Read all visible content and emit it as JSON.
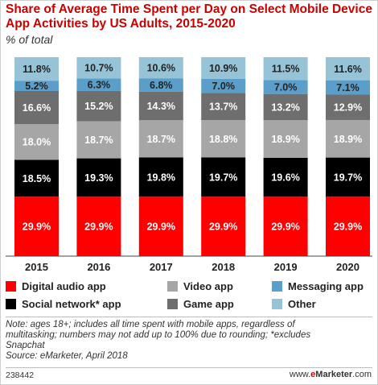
{
  "title": "Share of Average Time Spent per Day on Select Mobile Device App Activities by US Adults, 2015-2020",
  "subtitle": "% of total",
  "colors": {
    "title": "#cc0000",
    "digital_audio": "#ff0000",
    "social_network": "#000000",
    "video": "#a6a6a6",
    "game": "#6e6e6e",
    "messaging": "#5b9ec9",
    "other": "#96c3d6"
  },
  "chart_data": {
    "type": "bar",
    "stacked": true,
    "categories": [
      "2015",
      "2016",
      "2017",
      "2018",
      "2019",
      "2020"
    ],
    "series": [
      {
        "name": "Digital audio app",
        "key": "digital_audio",
        "values": [
          29.9,
          29.9,
          29.9,
          29.9,
          29.9,
          29.9
        ],
        "labels": [
          "29.9%",
          "29.9%",
          "29.9%",
          "29.9%",
          "29.9%",
          "29.9%"
        ]
      },
      {
        "name": "Social network* app",
        "key": "social_network",
        "values": [
          18.5,
          19.3,
          19.8,
          19.7,
          19.6,
          19.7
        ],
        "labels": [
          "18.5%",
          "19.3%",
          "19.8%",
          "19.7%",
          "19.6%",
          "19.7%"
        ]
      },
      {
        "name": "Video app",
        "key": "video",
        "values": [
          18.0,
          18.7,
          18.7,
          18.8,
          18.9,
          18.9
        ],
        "labels": [
          "18.0%",
          "18.7%",
          "18.7%",
          "18.8%",
          "18.9%",
          "18.9%"
        ]
      },
      {
        "name": "Game app",
        "key": "game",
        "values": [
          16.6,
          15.2,
          14.3,
          13.7,
          13.2,
          12.9
        ],
        "labels": [
          "16.6%",
          "15.2%",
          "14.3%",
          "13.7%",
          "13.2%",
          "12.9%"
        ]
      },
      {
        "name": "Messaging app",
        "key": "messaging",
        "values": [
          5.2,
          6.3,
          6.8,
          7.0,
          7.0,
          7.1
        ],
        "labels": [
          "5.2%",
          "6.3%",
          "6.8%",
          "7.0%",
          "7.0%",
          "7.1%"
        ]
      },
      {
        "name": "Other",
        "key": "other",
        "values": [
          11.8,
          10.7,
          10.6,
          10.9,
          11.5,
          11.6
        ],
        "labels": [
          "11.8%",
          "10.7%",
          "10.6%",
          "10.9%",
          "11.5%",
          "11.6%"
        ]
      }
    ],
    "ylim": [
      0,
      100
    ],
    "grid": false,
    "legend_position": "bottom"
  },
  "legend": {
    "items": [
      {
        "label": "Digital audio app",
        "key": "digital_audio"
      },
      {
        "label": "Video app",
        "key": "video"
      },
      {
        "label": "Messaging app",
        "key": "messaging"
      },
      {
        "label": "Social network* app",
        "key": "social_network"
      },
      {
        "label": "Game app",
        "key": "game"
      },
      {
        "label": "Other",
        "key": "other"
      }
    ]
  },
  "note": {
    "line1": "Note: ages 18+; includes all time spent with mobile apps, regardless of",
    "line2": "multitasking; numbers may not add up to 100% due to rounding; *excludes",
    "line3": "Snapchat",
    "source": "Source: eMarketer, April 2018"
  },
  "footer": {
    "chart_id": "238442",
    "site_prefix": "www.",
    "site_e": "e",
    "site_rest": "Marketer",
    "site_suffix": ".com"
  }
}
